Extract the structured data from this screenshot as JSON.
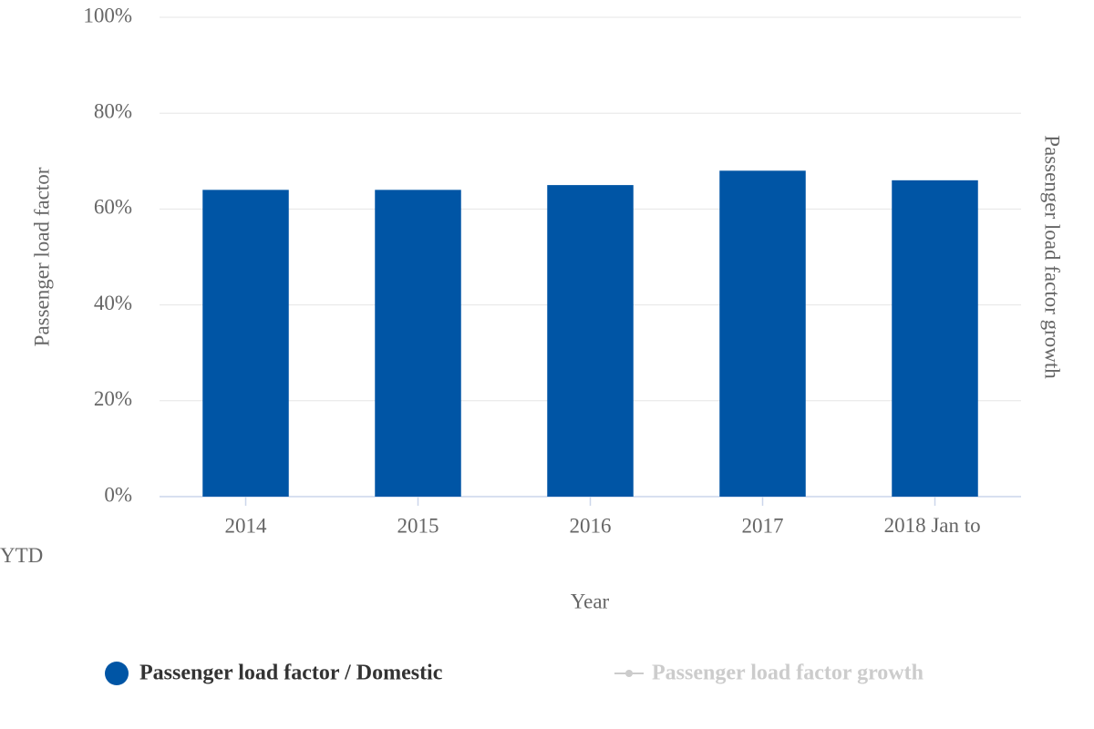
{
  "chart_data": {
    "type": "bar",
    "categories": [
      "2014",
      "2015",
      "2016",
      "2017",
      "2018 Jan to YTD"
    ],
    "series": [
      {
        "name": "Passenger load factor / Domestic",
        "color": "#0055a5",
        "values": [
          64,
          64,
          65,
          68,
          66
        ]
      },
      {
        "name": "Passenger load factor growth",
        "color": "#cccccc",
        "axis": "y2",
        "type": "line",
        "values": [
          null,
          null,
          null,
          null,
          null
        ]
      }
    ],
    "ylim": [
      0,
      100
    ],
    "yticks": [
      {
        "value": 0,
        "label": "0%"
      },
      {
        "value": 20,
        "label": "20%"
      },
      {
        "value": 40,
        "label": "40%"
      },
      {
        "value": 60,
        "label": "60%"
      },
      {
        "value": 80,
        "label": "80%"
      },
      {
        "value": 100,
        "label": "100%"
      }
    ],
    "ylabel": "Passenger load factor",
    "y2label": "Passenger load factor growth",
    "xlabel": "Year",
    "grid": true
  }
}
